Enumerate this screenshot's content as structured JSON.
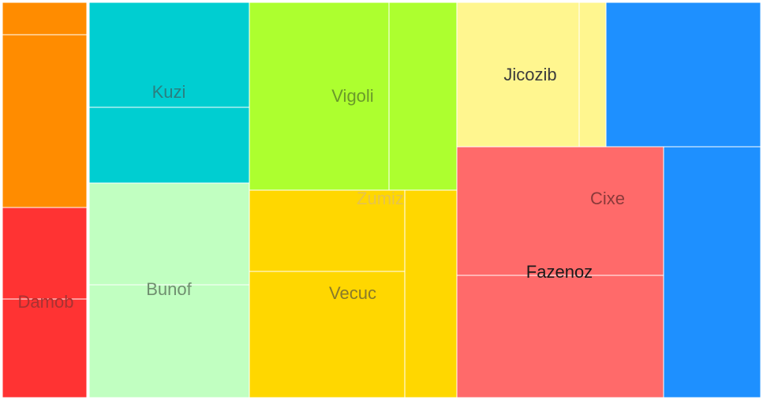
{
  "chart_data": {
    "type": "treemap",
    "title": "",
    "labels": [
      "Kuzi",
      "Vigoli",
      "Jicozib",
      "Cixe",
      "Fazenoz",
      "Damob",
      "Bunof",
      "Zumiz",
      "Vecuc"
    ],
    "groups": [
      {
        "id": "orange-group",
        "color": "#FF8C00",
        "label": "",
        "cells": [
          {
            "value": 4.7
          },
          {
            "value": 25.9
          }
        ]
      },
      {
        "id": "damob",
        "color": "#FF3333",
        "label": "Damob",
        "label_color": "#a83232",
        "cells": [
          {
            "value": 12.5
          },
          {
            "value": 13.4
          }
        ]
      },
      {
        "id": "kuzi",
        "color": "#00CED1",
        "label": "Kuzi",
        "label_color": "#2b7f80",
        "cells": [
          {
            "value": 26.8
          },
          {
            "value": 19.6
          }
        ]
      },
      {
        "id": "bunof",
        "color": "#C1FFC1",
        "label": "Bunof",
        "label_color": "#6f8f6f",
        "cells": [
          {
            "value": 26.1
          },
          {
            "value": 28.4
          }
        ]
      },
      {
        "id": "vigoli",
        "color": "#ADFF2F",
        "label": "Vigoli",
        "label_color": "#6a9a2a",
        "cells": [
          {
            "value": 42.3
          },
          {
            "value": 20.3
          }
        ]
      },
      {
        "id": "zumiz",
        "color": "#FFD700",
        "label": "Zumiz",
        "label_color": "#e6c34d",
        "cells": [
          {
            "value": 20.6
          },
          {
            "value": 31.7
          },
          {
            "value": 16.8
          }
        ]
      },
      {
        "id": "vecuc",
        "color": "#FFD700",
        "label": "Vecuc",
        "label_color": "#8a7a2a",
        "cells": []
      },
      {
        "id": "jicozib",
        "color": "#FFF68F",
        "label": "Jicozib",
        "label_color": "#3b3b3b",
        "cells": [
          {
            "value": 27.3
          },
          {
            "value": 6.3
          }
        ]
      },
      {
        "id": "blue-group",
        "color": "#1E90FF",
        "label": "",
        "cells": [
          {
            "value": 36.4
          },
          {
            "value": 38.5
          }
        ]
      },
      {
        "id": "cixe",
        "color": "#FF6A6A",
        "label": "Cixe",
        "label_color": "#8a3a3a",
        "cells": [
          {
            "value": 42.6
          }
        ]
      },
      {
        "id": "fazenoz",
        "color": "#FF6A6A",
        "label": "Fazenoz",
        "label_color": "#1a1a1a",
        "cells": [
          {
            "value": 40.3
          }
        ]
      }
    ]
  }
}
